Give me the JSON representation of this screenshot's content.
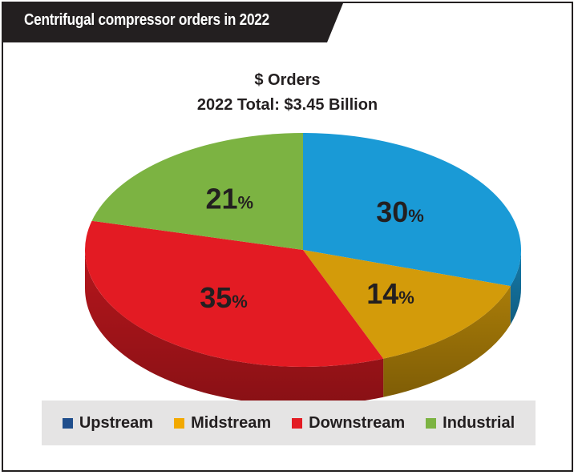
{
  "header": {
    "title": "Centrifugal compressor orders in 2022"
  },
  "chart_data": {
    "type": "pie",
    "title": "$ Orders",
    "subtitle": "2022 Total: $3.45 Billion",
    "categories": [
      "Upstream",
      "Midstream",
      "Downstream",
      "Industrial"
    ],
    "values": [
      30,
      14,
      35,
      21
    ],
    "labels": [
      "30",
      "14",
      "35",
      "21"
    ],
    "unit": "%",
    "colors": [
      "#1a9ad6",
      "#d39b0a",
      "#e31b23",
      "#7cb342"
    ],
    "legend_colors": [
      "#1f4e8c",
      "#f2a900",
      "#e31b23",
      "#7cb342"
    ],
    "legend_position": "bottom",
    "style": "3d-tilted"
  }
}
